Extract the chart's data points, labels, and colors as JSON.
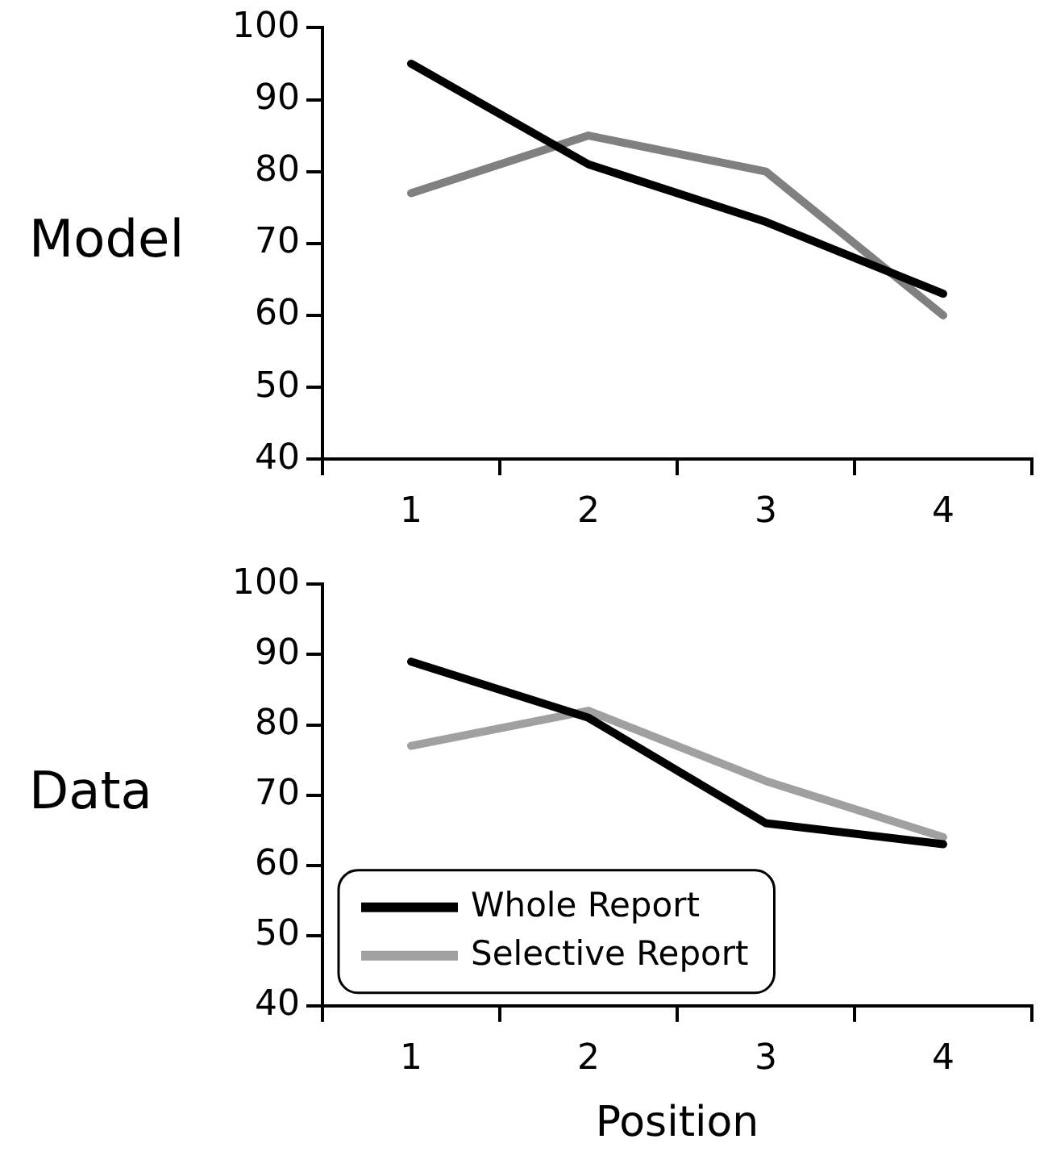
{
  "chart_data": [
    {
      "type": "line",
      "ylabel": "Model",
      "categories": [
        "1",
        "2",
        "3",
        "4"
      ],
      "ylim": [
        40,
        100
      ],
      "yticks": [
        40,
        50,
        60,
        70,
        80,
        90,
        100
      ],
      "grid": false,
      "legend": false,
      "marker": "none",
      "line_style": "solid",
      "series": [
        {
          "color": "#000000",
          "values": [
            95,
            81,
            73,
            63
          ]
        },
        {
          "color": "#808080",
          "values": [
            77,
            85,
            80,
            60
          ]
        }
      ]
    },
    {
      "type": "line",
      "ylabel": "Data",
      "xlabel": "Position",
      "categories": [
        "1",
        "2",
        "3",
        "4"
      ],
      "ylim": [
        40,
        100
      ],
      "yticks": [
        40,
        50,
        60,
        70,
        80,
        90,
        100
      ],
      "grid": false,
      "legend": "bottom left",
      "marker": "none",
      "line_style": "solid",
      "series": [
        {
          "name": "Whole Report",
          "color": "#000000",
          "values": [
            89,
            81,
            66,
            63
          ]
        },
        {
          "name": "Selective Report",
          "color": "#a0a0a0",
          "values": [
            77,
            82,
            72,
            64
          ]
        }
      ]
    }
  ]
}
